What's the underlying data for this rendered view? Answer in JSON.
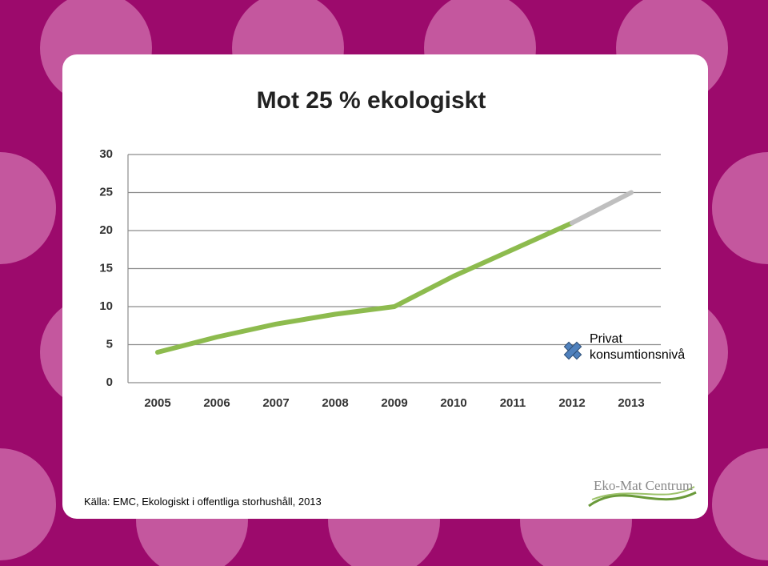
{
  "chart_data": {
    "type": "line",
    "title": "Mot 25 % ekologiskt",
    "categories": [
      "2005",
      "2006",
      "2007",
      "2008",
      "2009",
      "2010",
      "2011",
      "2012",
      "2013"
    ],
    "series": [
      {
        "color": "#8dbb4e",
        "values": [
          4,
          6,
          7.7,
          9,
          10,
          14,
          17.5,
          21,
          null
        ]
      },
      {
        "color": "#bfbfbf",
        "values": [
          null,
          null,
          null,
          null,
          null,
          null,
          null,
          21,
          25
        ]
      },
      {
        "name": "Privat konsumtionsnivå",
        "color": "#4f81bd",
        "values": [
          null,
          null,
          null,
          null,
          null,
          null,
          null,
          null,
          null
        ]
      }
    ],
    "ylim": [
      0,
      30
    ],
    "yticks": [
      0,
      5,
      10,
      15,
      20,
      25,
      30
    ],
    "grid": true
  },
  "source": "Källa: EMC, Ekologiskt i offentliga storhushåll, 2013",
  "logo": "Eko-Mat Centrum"
}
